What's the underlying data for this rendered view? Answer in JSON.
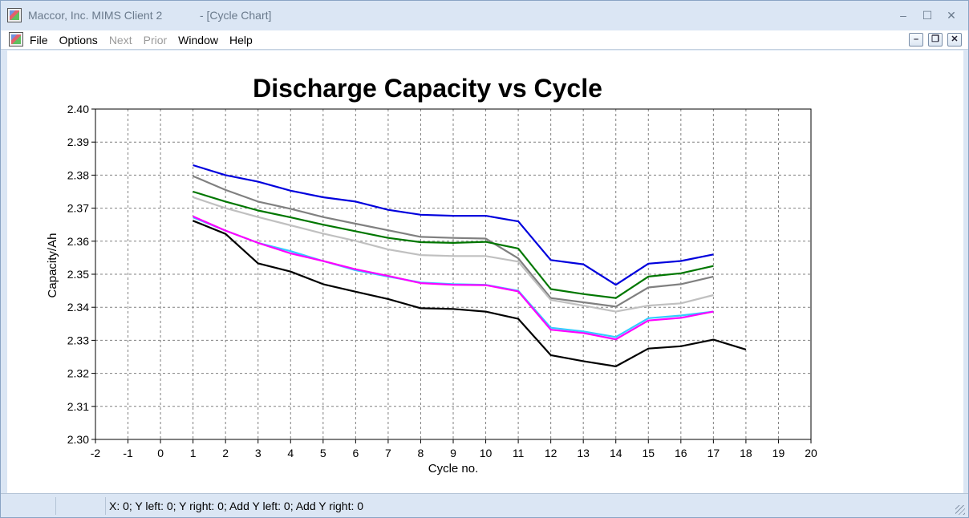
{
  "window": {
    "title": "Maccor, Inc. MIMS Client 2            - [Cycle Chart]",
    "controls": {
      "minimize": "–",
      "maximize": "☐",
      "close": "✕"
    }
  },
  "menu": {
    "items": [
      {
        "label": "File",
        "enabled": true
      },
      {
        "label": "Options",
        "enabled": true
      },
      {
        "label": "Next",
        "enabled": false
      },
      {
        "label": "Prior",
        "enabled": false
      },
      {
        "label": "Window",
        "enabled": true
      },
      {
        "label": "Help",
        "enabled": true
      }
    ],
    "mdi_controls": {
      "minimize": "–",
      "restore": "❐",
      "close": "✕"
    }
  },
  "status": {
    "text": "X: 0; Y left: 0; Y right: 0; Add Y left: 0; Add Y right: 0"
  },
  "chart_data": {
    "type": "line",
    "title": "Discharge Capacity vs Cycle",
    "xlabel": "Cycle no.",
    "ylabel": "Capacity/Ah",
    "xlim": [
      -2,
      20
    ],
    "ylim": [
      2.3,
      2.4
    ],
    "xticks": [
      "-2",
      "-1",
      "0",
      "1",
      "2",
      "3",
      "4",
      "5",
      "6",
      "7",
      "8",
      "9",
      "10",
      "11",
      "12",
      "13",
      "14",
      "15",
      "16",
      "17",
      "18",
      "19",
      "20"
    ],
    "yticks": [
      "2.30",
      "2.31",
      "2.32",
      "2.33",
      "2.34",
      "2.35",
      "2.36",
      "2.37",
      "2.38",
      "2.39",
      "2.40"
    ],
    "grid": true,
    "series": [
      {
        "color": "#0000dd",
        "x": [
          1,
          2,
          3,
          4,
          5,
          6,
          7,
          8,
          9,
          10,
          11,
          12,
          13,
          14,
          15,
          16,
          17
        ],
        "y": [
          2.383,
          2.38,
          2.378,
          2.3753,
          2.3733,
          2.372,
          2.3695,
          2.368,
          2.3677,
          2.3677,
          2.366,
          2.3543,
          2.353,
          2.3468,
          2.3532,
          2.354,
          2.356
        ]
      },
      {
        "color": "#808080",
        "x": [
          1,
          2,
          3,
          4,
          5,
          6,
          7,
          8,
          9,
          10,
          11,
          12,
          13,
          14,
          15,
          16,
          17
        ],
        "y": [
          2.3797,
          2.3755,
          2.372,
          2.3698,
          2.3673,
          2.3653,
          2.3633,
          2.3613,
          2.361,
          2.3608,
          2.3548,
          2.3428,
          2.3415,
          2.3402,
          2.346,
          2.347,
          2.3493
        ]
      },
      {
        "color": "#007700",
        "x": [
          1,
          2,
          3,
          4,
          5,
          6,
          7,
          8,
          9,
          10,
          11,
          12,
          13,
          14,
          15,
          16,
          17
        ],
        "y": [
          2.375,
          2.372,
          2.3693,
          2.3672,
          2.365,
          2.363,
          2.361,
          2.3597,
          2.3595,
          2.3598,
          2.3578,
          2.3455,
          2.344,
          2.3428,
          2.3493,
          2.3503,
          2.3525
        ]
      },
      {
        "color": "#c0c0c0",
        "x": [
          1,
          2,
          3,
          4,
          5,
          6,
          7,
          8,
          9,
          10,
          11,
          12,
          13,
          14,
          15,
          16,
          17
        ],
        "y": [
          2.3733,
          2.37,
          2.3673,
          2.3648,
          2.3623,
          2.3601,
          2.3575,
          2.3558,
          2.3555,
          2.3555,
          2.3538,
          2.3422,
          2.3405,
          2.3387,
          2.3405,
          2.3412,
          2.3437
        ]
      },
      {
        "color": "#33ccff",
        "x": [
          1,
          2,
          3,
          4,
          5,
          6,
          7,
          8,
          9,
          10,
          11,
          12,
          13,
          14,
          15,
          16,
          17
        ],
        "y": [
          2.3672,
          2.3632,
          2.3595,
          2.357,
          2.354,
          2.3512,
          2.3493,
          2.3475,
          2.347,
          2.3468,
          2.345,
          2.3338,
          2.3327,
          2.331,
          2.3367,
          2.3375,
          2.3387
        ]
      },
      {
        "color": "#ff00ff",
        "x": [
          1,
          2,
          3,
          4,
          5,
          6,
          7,
          8,
          9,
          10,
          11,
          12,
          13,
          14,
          15,
          16,
          17
        ],
        "y": [
          2.3675,
          2.3632,
          2.3595,
          2.3563,
          2.354,
          2.3515,
          2.3495,
          2.3473,
          2.3468,
          2.3467,
          2.3448,
          2.3332,
          2.3322,
          2.3303,
          2.336,
          2.3368,
          2.3387
        ]
      },
      {
        "color": "#000000",
        "x": [
          1,
          2,
          3,
          4,
          5,
          6,
          7,
          8,
          9,
          10,
          11,
          12,
          13,
          14,
          15,
          16,
          17,
          18
        ],
        "y": [
          2.3662,
          2.3622,
          2.3533,
          2.3508,
          2.347,
          2.3447,
          2.3425,
          2.3397,
          2.3395,
          2.3387,
          2.3365,
          2.3255,
          2.3237,
          2.3221,
          2.3275,
          2.3282,
          2.3302,
          2.3272
        ]
      }
    ]
  }
}
